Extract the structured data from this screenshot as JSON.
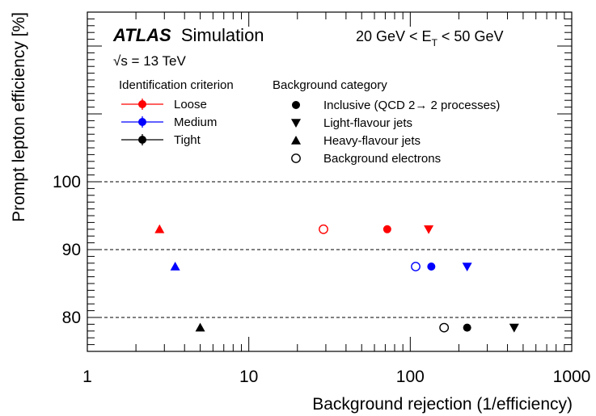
{
  "chart_data": {
    "type": "scatter",
    "x_scale": "log",
    "xlim": [
      1,
      1000
    ],
    "ylim": [
      75,
      125
    ],
    "xlabel": "Background rejection (1/efficiency)",
    "ylabel": "Prompt lepton efficiency [%]",
    "x_ticks": [
      {
        "value": 1,
        "label": "1"
      },
      {
        "value": 10,
        "label": "10"
      },
      {
        "value": 100,
        "label": "100"
      },
      {
        "value": 1000,
        "label": "1000"
      }
    ],
    "y_ticks": [
      {
        "value": 80,
        "label": "80"
      },
      {
        "value": 90,
        "label": "90"
      },
      {
        "value": 100,
        "label": "100"
      }
    ],
    "dashed_gridlines_y": [
      80,
      90,
      100
    ],
    "annotations": {
      "experiment": "ATLAS",
      "status": "Simulation",
      "energy_line": "√s = 13 TeV",
      "et_prefix": "20 GeV < E",
      "et_sub": "T",
      "et_suffix": " < 50 GeV"
    },
    "legend_criterion": {
      "header": "Identification criterion",
      "entries": [
        {
          "label": "Loose",
          "color": "#ff0000"
        },
        {
          "label": "Medium",
          "color": "#0000ff"
        },
        {
          "label": "Tight",
          "color": "#000000"
        }
      ]
    },
    "legend_background": {
      "header": "Background category",
      "entries": [
        {
          "label": "Inclusive (QCD 2→ 2 processes)",
          "marker": "circle-filled"
        },
        {
          "label": "Light-flavour jets",
          "marker": "triangle-down"
        },
        {
          "label": "Heavy-flavour jets",
          "marker": "triangle-up"
        },
        {
          "label": "Background electrons",
          "marker": "circle-open"
        }
      ]
    },
    "series": [
      {
        "criterion": "Loose",
        "color": "#ff0000",
        "points": [
          {
            "category": "Heavy-flavour jets",
            "marker": "triangle-up",
            "x": 2.8,
            "y": 93.0
          },
          {
            "category": "Background electrons",
            "marker": "circle-open",
            "x": 29,
            "y": 93.0
          },
          {
            "category": "Inclusive",
            "marker": "circle-filled",
            "x": 72,
            "y": 93.0
          },
          {
            "category": "Light-flavour jets",
            "marker": "triangle-down",
            "x": 130,
            "y": 93.0
          }
        ]
      },
      {
        "criterion": "Medium",
        "color": "#0000ff",
        "points": [
          {
            "category": "Heavy-flavour jets",
            "marker": "triangle-up",
            "x": 3.5,
            "y": 87.5
          },
          {
            "category": "Background electrons",
            "marker": "circle-open",
            "x": 108,
            "y": 87.5
          },
          {
            "category": "Inclusive",
            "marker": "circle-filled",
            "x": 135,
            "y": 87.5
          },
          {
            "category": "Light-flavour jets",
            "marker": "triangle-down",
            "x": 225,
            "y": 87.5
          }
        ]
      },
      {
        "criterion": "Tight",
        "color": "#000000",
        "points": [
          {
            "category": "Heavy-flavour jets",
            "marker": "triangle-up",
            "x": 5.0,
            "y": 78.5
          },
          {
            "category": "Background electrons",
            "marker": "circle-open",
            "x": 162,
            "y": 78.5
          },
          {
            "category": "Inclusive",
            "marker": "circle-filled",
            "x": 225,
            "y": 78.5
          },
          {
            "category": "Light-flavour jets",
            "marker": "triangle-down",
            "x": 440,
            "y": 78.5
          }
        ]
      }
    ]
  }
}
